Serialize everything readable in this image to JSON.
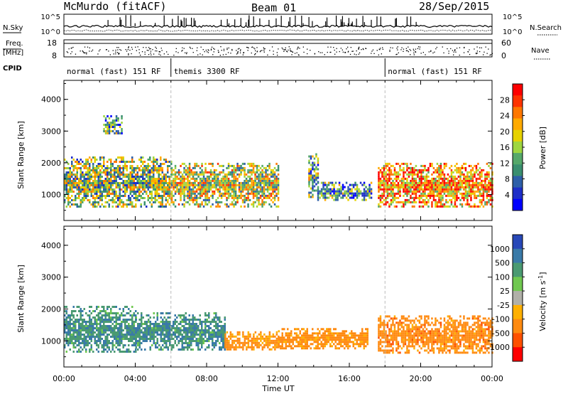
{
  "header": {
    "station": "McMurdo (fitACF)",
    "beam": "Beam 01",
    "date": "28/Sep/2015"
  },
  "strip": {
    "nsky_label": "N.Sky",
    "nsearch_label": "N.Search",
    "nsky_ticks": [
      "10^5",
      "10^0"
    ],
    "nsearch_ticks": [
      "10^5",
      "10^0"
    ],
    "freq_label": "Freq.",
    "freq_unit": "[MHz]",
    "freq_ticks": [
      "18",
      "8"
    ],
    "nave_label": "Nave",
    "nave_ticks": [
      "60",
      "0"
    ],
    "cpid_label": "CPID",
    "modes": [
      {
        "label": "normal (fast) 151 RF",
        "start": 0,
        "end": 6
      },
      {
        "label": "themis 3300 RF",
        "start": 6,
        "end": 18
      },
      {
        "label": "normal (fast) 151 RF",
        "start": 18,
        "end": 24
      }
    ]
  },
  "colorbars": {
    "power": {
      "label": "Power [dB]",
      "ticks": [
        "28",
        "24",
        "20",
        "16",
        "12",
        "8",
        "4"
      ],
      "colors": [
        "#ff0000",
        "#ff3300",
        "#ff7700",
        "#ffaa00",
        "#e6d200",
        "#9ed640",
        "#55a86a",
        "#3a8f70",
        "#2e5fa8",
        "#1e2ec8",
        "#0000ff"
      ]
    },
    "velocity": {
      "label": "Velocity [m s^-1]",
      "ticks": [
        "1000",
        "500",
        "100",
        "25",
        "-25",
        "-100",
        "-500",
        "-1000"
      ],
      "colors": [
        "#2848b8",
        "#3a7aa8",
        "#4a9a72",
        "#70c850",
        "#b0b0a8",
        "#ffb000",
        "#ff8a10",
        "#ff5000",
        "#ff0000"
      ]
    }
  },
  "panels": {
    "ylabel": "Slant Range [km]",
    "xlabel": "Time UT",
    "yticks": [
      "4000",
      "3000",
      "2000",
      "1000"
    ],
    "xticks": [
      "00:00",
      "04:00",
      "08:00",
      "12:00",
      "16:00",
      "20:00",
      "00:00"
    ]
  },
  "chart_data": [
    {
      "type": "heatmap",
      "title": "Power",
      "xlabel": "Time UT",
      "ylabel": "Slant Range [km]",
      "xlim": [
        0,
        24
      ],
      "ylim": [
        180,
        4600
      ],
      "colorbar": {
        "label": "Power [dB]",
        "range": [
          0,
          30
        ]
      },
      "echo_regions": [
        {
          "t_start": 0.0,
          "t_end": 6.0,
          "r_min": 600,
          "r_max": 2200,
          "power_db": 14
        },
        {
          "t_start": 2.2,
          "t_end": 3.2,
          "r_min": 2900,
          "r_max": 3500,
          "power_db": 10
        },
        {
          "t_start": 6.0,
          "t_end": 12.0,
          "r_min": 650,
          "r_max": 2000,
          "power_db": 16
        },
        {
          "t_start": 13.7,
          "t_end": 14.2,
          "r_min": 900,
          "r_max": 2300,
          "power_db": 12
        },
        {
          "t_start": 14.2,
          "t_end": 17.2,
          "r_min": 800,
          "r_max": 1400,
          "power_db": 10
        },
        {
          "t_start": 17.6,
          "t_end": 24.0,
          "r_min": 600,
          "r_max": 2000,
          "power_db": 22
        }
      ]
    },
    {
      "type": "heatmap",
      "title": "Velocity",
      "xlabel": "Time UT",
      "ylabel": "Slant Range [km]",
      "xlim": [
        0,
        24
      ],
      "ylim": [
        180,
        4600
      ],
      "colorbar": {
        "label": "Velocity [m s^-1]",
        "range": [
          -1000,
          1000
        ]
      },
      "echo_regions": [
        {
          "t_start": 0.0,
          "t_end": 4.0,
          "r_min": 650,
          "r_max": 2100,
          "velocity": 80
        },
        {
          "t_start": 4.0,
          "t_end": 9.0,
          "r_min": 700,
          "r_max": 1900,
          "velocity": 90
        },
        {
          "t_start": 9.0,
          "t_end": 12.0,
          "r_min": 700,
          "r_max": 1300,
          "velocity": -150
        },
        {
          "t_start": 12.0,
          "t_end": 17.0,
          "r_min": 750,
          "r_max": 1400,
          "velocity": -180
        },
        {
          "t_start": 17.6,
          "t_end": 24.0,
          "r_min": 600,
          "r_max": 1800,
          "velocity": -300
        }
      ]
    }
  ]
}
